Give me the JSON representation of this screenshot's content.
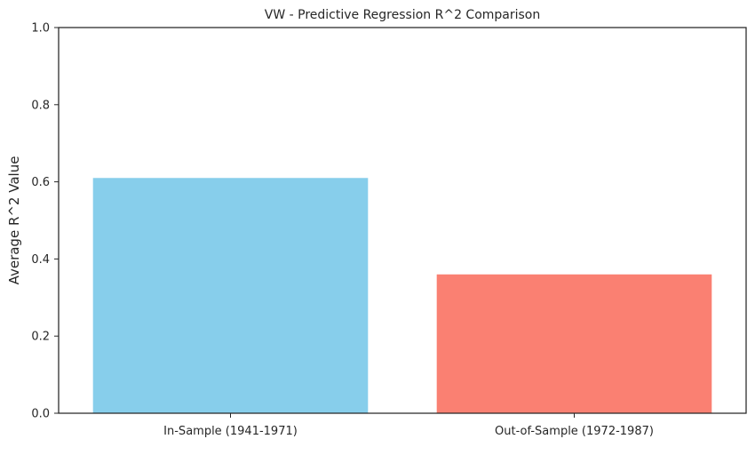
{
  "chart_data": {
    "type": "bar",
    "title": "VW - Predictive Regression R^2 Comparison",
    "xlabel": "",
    "ylabel": "Average R^2 Value",
    "categories": [
      "In-Sample (1941-1971)",
      "Out-of-Sample (1972-1987)"
    ],
    "values": [
      0.61,
      0.36
    ],
    "colors": [
      "#87ceeb",
      "#fa8072"
    ],
    "ylim": [
      0,
      1.0
    ],
    "yticks": [
      "0.0",
      "0.2",
      "0.4",
      "0.6",
      "0.8",
      "1.0"
    ],
    "grid": false,
    "legend": "none"
  }
}
